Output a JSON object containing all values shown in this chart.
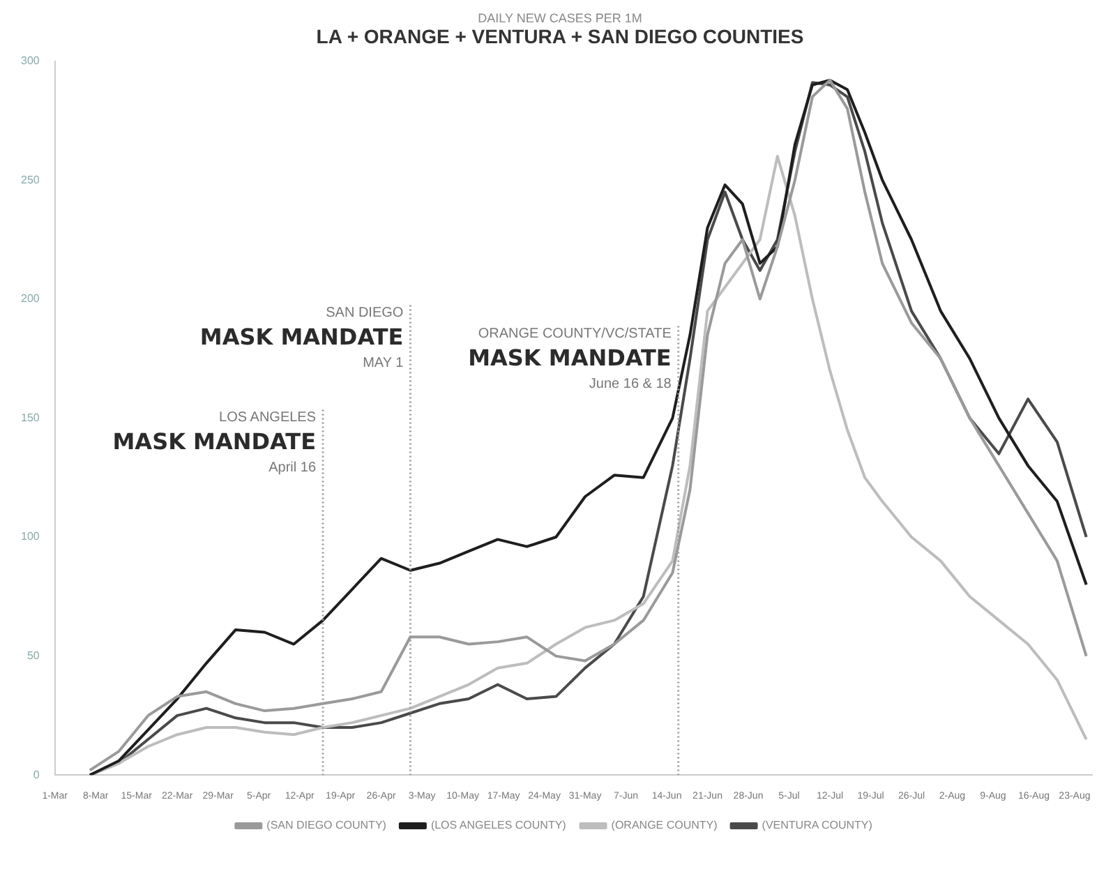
{
  "chart_data": {
    "type": "line",
    "subtitle": "DAILY NEW CASES PER 1M",
    "title": "LA + ORANGE + VENTURA + SAN DIEGO COUNTIES",
    "x": [
      "--03-07",
      "--03-12",
      "--03-17",
      "--03-22",
      "--03-27",
      "--04-01",
      "--04-06",
      "--04-11",
      "--04-16",
      "--04-21",
      "--04-26",
      "--05-01",
      "--05-06",
      "--05-11",
      "--05-16",
      "--05-21",
      "--05-26",
      "--05-31",
      "--06-05",
      "--06-10",
      "--06-15",
      "--06-18",
      "--06-21",
      "--06-24",
      "--06-27",
      "--06-30",
      "--07-03",
      "--07-06",
      "--07-09",
      "--07-12",
      "--07-15",
      "--07-18",
      "--07-21",
      "--07-26",
      "--07-31",
      "--08-05",
      "--08-10",
      "--08-15",
      "--08-20",
      "--08-25"
    ],
    "series": [
      {
        "name": "(SAN DIEGO COUNTY)",
        "color": "#9a9a9a",
        "values": [
          2,
          10,
          25,
          33,
          35,
          30,
          27,
          28,
          30,
          32,
          35,
          58,
          58,
          55,
          56,
          58,
          50,
          48,
          55,
          65,
          85,
          120,
          185,
          215,
          225,
          200,
          222,
          250,
          285,
          292,
          280,
          245,
          215,
          190,
          175,
          150,
          130,
          110,
          90,
          50
        ]
      },
      {
        "name": "(LOS ANGELES COUNTY)",
        "color": "#1e1e1e",
        "values": [
          0,
          6,
          19,
          32,
          47,
          61,
          60,
          55,
          65,
          78,
          91,
          86,
          89,
          94,
          99,
          96,
          100,
          117,
          126,
          125,
          150,
          185,
          230,
          248,
          240,
          215,
          222,
          265,
          290,
          292,
          288,
          270,
          250,
          225,
          195,
          175,
          150,
          130,
          115,
          80
        ]
      },
      {
        "name": "(ORANGE COUNTY)",
        "color": "#bdbdbd",
        "values": [
          0,
          5,
          12,
          17,
          20,
          20,
          18,
          17,
          20,
          22,
          25,
          28,
          33,
          38,
          45,
          47,
          55,
          62,
          65,
          72,
          90,
          130,
          195,
          205,
          215,
          225,
          260,
          235,
          200,
          170,
          145,
          125,
          115,
          100,
          90,
          75,
          65,
          55,
          40,
          15
        ]
      },
      {
        "name": "(VENTURA COUNTY)",
        "color": "#4a4a4a",
        "values": [
          0,
          5,
          15,
          25,
          28,
          24,
          22,
          22,
          20,
          20,
          22,
          26,
          30,
          32,
          38,
          32,
          33,
          45,
          55,
          75,
          130,
          175,
          225,
          245,
          225,
          212,
          225,
          262,
          291,
          290,
          285,
          262,
          232,
          195,
          175,
          150,
          135,
          158,
          140,
          100
        ]
      }
    ],
    "xlim": [
      "--03-01",
      "--08-26"
    ],
    "xticks": [
      {
        "value": "--03-01",
        "label": "1-Mar"
      },
      {
        "value": "--03-08",
        "label": "8-Mar"
      },
      {
        "value": "--03-15",
        "label": "15-Mar"
      },
      {
        "value": "--03-22",
        "label": "22-Mar"
      },
      {
        "value": "--03-29",
        "label": "29-Mar"
      },
      {
        "value": "--04-05",
        "label": "5-Apr"
      },
      {
        "value": "--04-12",
        "label": "12-Apr"
      },
      {
        "value": "--04-19",
        "label": "19-Apr"
      },
      {
        "value": "--04-26",
        "label": "26-Apr"
      },
      {
        "value": "--05-03",
        "label": "3-May"
      },
      {
        "value": "--05-10",
        "label": "10-May"
      },
      {
        "value": "--05-17",
        "label": "17-May"
      },
      {
        "value": "--05-24",
        "label": "24-May"
      },
      {
        "value": "--05-31",
        "label": "31-May"
      },
      {
        "value": "--06-07",
        "label": "7-Jun"
      },
      {
        "value": "--06-14",
        "label": "14-Jun"
      },
      {
        "value": "--06-21",
        "label": "21-Jun"
      },
      {
        "value": "--06-28",
        "label": "28-Jun"
      },
      {
        "value": "--07-05",
        "label": "5-Jul"
      },
      {
        "value": "--07-12",
        "label": "12-Jul"
      },
      {
        "value": "--07-19",
        "label": "19-Jul"
      },
      {
        "value": "--07-26",
        "label": "26-Jul"
      },
      {
        "value": "--08-02",
        "label": "2-Aug"
      },
      {
        "value": "--08-09",
        "label": "9-Aug"
      },
      {
        "value": "--08-16",
        "label": "16-Aug"
      },
      {
        "value": "--08-23",
        "label": "23-Aug"
      }
    ],
    "ylim": [
      0,
      300
    ],
    "yticks": [
      0,
      50,
      100,
      150,
      200,
      250,
      300
    ],
    "ref_lines": [
      {
        "axis": "x",
        "value": "--04-16",
        "label": "LOS ANGELES\nMASK MANDATE\nApril 16",
        "color": "#9a9a9a",
        "line_style": "dotted"
      },
      {
        "axis": "x",
        "value": "--05-01",
        "label": "SAN DIEGO\nMASK MANDATE\nMAY 1",
        "color": "#9a9a9a",
        "line_style": "dotted"
      },
      {
        "axis": "x",
        "value": "--06-16",
        "label": "ORANGE COUNTY/VC/STATE\nMASK MANDATE\nJune 16 & 18",
        "color": "#9a9a9a",
        "line_style": "dotted"
      }
    ],
    "legend": "bottom",
    "line_style": "solid",
    "marker": "none"
  }
}
